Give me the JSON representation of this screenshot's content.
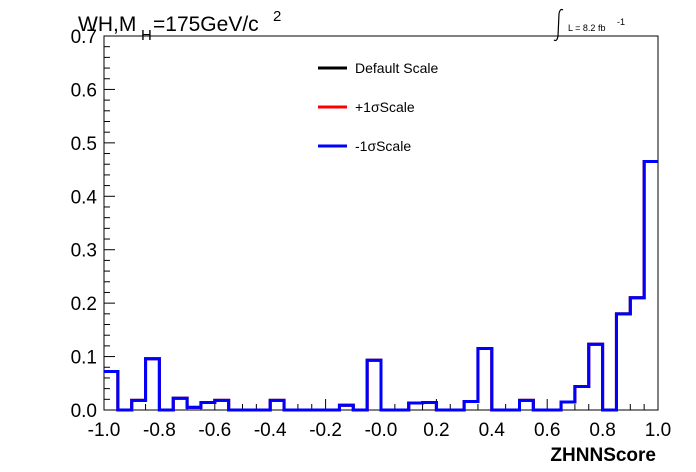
{
  "chart_data": {
    "type": "line",
    "title_main": "WH,M",
    "title_sub": "H",
    "title_rest": "=175GeV/c",
    "title_sup": "2",
    "lumi_text": "L = 8.2 fb",
    "lumi_sup": "-1",
    "xlabel": "ZHNNScore",
    "ylabel": "",
    "xlim": [
      -1.0,
      1.0
    ],
    "ylim": [
      0.0,
      0.7
    ],
    "x_ticks": [
      "-1.0",
      "-0.8",
      "-0.6",
      "-0.4",
      "-0.2",
      "-0.0",
      "0.2",
      "0.4",
      "0.6",
      "0.8",
      "1.0"
    ],
    "y_ticks": [
      "0.0",
      "0.1",
      "0.2",
      "0.3",
      "0.4",
      "0.5",
      "0.6",
      "0.7"
    ],
    "bin_edges_start": -1.0,
    "bin_width": 0.05,
    "legend_position": "top-center",
    "series": [
      {
        "name": "Default Scale",
        "color": "#000000",
        "values": [
          0.072,
          0.0,
          0.018,
          0.096,
          0.0,
          0.022,
          0.005,
          0.014,
          0.018,
          0.0,
          0.0,
          0.0,
          0.018,
          0.0,
          0.0,
          0.0,
          0.0,
          0.009,
          0.0,
          0.093,
          0.0,
          0.0,
          0.013,
          0.014,
          0.0,
          0.0,
          0.016,
          0.115,
          0.0,
          0.0,
          0.018,
          0.0,
          0.0,
          0.015,
          0.044,
          0.123,
          0.0,
          0.18,
          0.21,
          0.465
        ]
      },
      {
        "name": "+1σScale",
        "color": "#ff0000",
        "values": [
          0.072,
          0.0,
          0.018,
          0.096,
          0.0,
          0.022,
          0.005,
          0.014,
          0.018,
          0.0,
          0.0,
          0.0,
          0.018,
          0.0,
          0.0,
          0.0,
          0.0,
          0.009,
          0.0,
          0.093,
          0.0,
          0.0,
          0.013,
          0.014,
          0.0,
          0.0,
          0.016,
          0.115,
          0.0,
          0.0,
          0.018,
          0.0,
          0.0,
          0.015,
          0.044,
          0.123,
          0.0,
          0.18,
          0.21,
          0.465
        ]
      },
      {
        "name": "-1σScale",
        "color": "#0000ff",
        "values": [
          0.072,
          0.0,
          0.018,
          0.096,
          0.0,
          0.022,
          0.005,
          0.014,
          0.018,
          0.0,
          0.0,
          0.0,
          0.018,
          0.0,
          0.0,
          0.0,
          0.0,
          0.009,
          0.0,
          0.093,
          0.0,
          0.0,
          0.013,
          0.014,
          0.0,
          0.0,
          0.016,
          0.115,
          0.0,
          0.0,
          0.018,
          0.0,
          0.0,
          0.015,
          0.044,
          0.123,
          0.0,
          0.18,
          0.21,
          0.465
        ]
      }
    ]
  }
}
